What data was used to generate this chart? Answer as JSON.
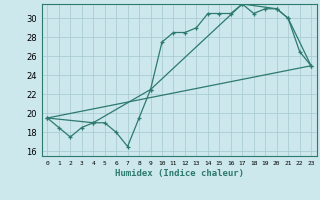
{
  "xlabel": "Humidex (Indice chaleur)",
  "bg_color": "#cce8ec",
  "grid_color": "#aacdd4",
  "line_color": "#2d7a6e",
  "xlim": [
    -0.5,
    23.5
  ],
  "ylim": [
    15.5,
    31.5
  ],
  "xticks": [
    0,
    1,
    2,
    3,
    4,
    5,
    6,
    7,
    8,
    9,
    10,
    11,
    12,
    13,
    14,
    15,
    16,
    17,
    18,
    19,
    20,
    21,
    22,
    23
  ],
  "yticks": [
    16,
    18,
    20,
    22,
    24,
    26,
    28,
    30
  ],
  "series1_x": [
    0,
    1,
    2,
    3,
    4,
    5,
    6,
    7,
    8,
    9,
    10,
    11,
    12,
    13,
    14,
    15,
    16,
    17,
    18,
    19,
    20,
    21,
    22,
    23
  ],
  "series1_y": [
    19.5,
    18.5,
    17.5,
    18.5,
    19.0,
    19.0,
    18.0,
    16.5,
    19.5,
    22.5,
    27.5,
    28.5,
    28.5,
    29.0,
    30.5,
    30.5,
    30.5,
    31.5,
    30.5,
    31.0,
    31.0,
    30.0,
    26.5,
    25.0
  ],
  "series2_x": [
    0,
    23
  ],
  "series2_y": [
    19.5,
    25.0
  ],
  "series3_x": [
    0,
    4,
    9,
    17,
    20,
    21,
    23
  ],
  "series3_y": [
    19.5,
    19.0,
    22.5,
    31.5,
    31.0,
    30.0,
    25.0
  ]
}
